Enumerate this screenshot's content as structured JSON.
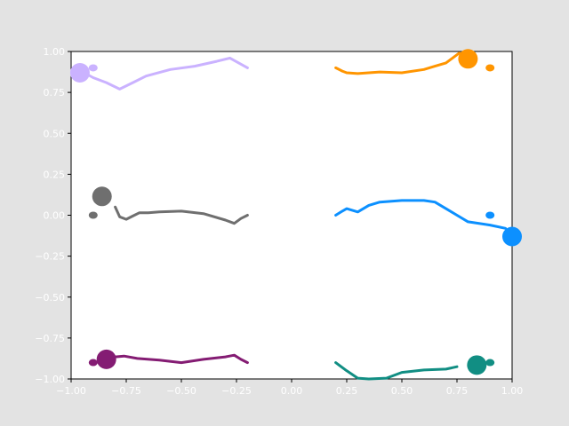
{
  "chart_data": {
    "type": "line",
    "title": "",
    "xlabel": "",
    "ylabel": "",
    "xlim": [
      -1.0,
      1.0
    ],
    "ylim": [
      -1.0,
      1.0
    ],
    "grid": false,
    "x_ticks": [
      -1.0,
      -0.75,
      -0.5,
      -0.25,
      0.0,
      0.25,
      0.5,
      0.75,
      1.0
    ],
    "x_tick_labels": [
      "−1.00",
      "−0.75",
      "−0.50",
      "−0.25",
      "0.00",
      "0.25",
      "0.50",
      "0.75",
      "1.00"
    ],
    "y_ticks": [
      -1.0,
      -0.75,
      -0.5,
      -0.25,
      0.0,
      0.25,
      0.5,
      0.75,
      1.0
    ],
    "y_tick_labels": [
      "−1.00",
      "−0.75",
      "−0.50",
      "−0.25",
      "0.00",
      "0.25",
      "0.50",
      "0.75",
      "1.00"
    ],
    "series": [
      {
        "color": "#cab2ff",
        "x": [
          -0.2,
          -0.24,
          -0.28,
          -0.34,
          -0.44,
          -0.55,
          -0.66,
          -0.72,
          -0.78,
          -0.84,
          -0.9,
          -0.94
        ],
        "y": [
          0.9,
          0.93,
          0.96,
          0.94,
          0.91,
          0.89,
          0.85,
          0.81,
          0.77,
          0.81,
          0.84,
          0.87
        ],
        "head": {
          "x": -0.96,
          "y": 0.87
        },
        "tail": {
          "x": -0.9,
          "y": 0.9
        }
      },
      {
        "color": "#ff9500",
        "x": [
          0.2,
          0.23,
          0.25,
          0.3,
          0.35,
          0.4,
          0.5,
          0.6,
          0.65,
          0.7,
          0.73,
          0.76
        ],
        "y": [
          0.9,
          0.88,
          0.87,
          0.865,
          0.87,
          0.875,
          0.87,
          0.89,
          0.91,
          0.93,
          0.96,
          0.99
        ],
        "head": {
          "x": 0.8,
          "y": 0.955
        },
        "tail": {
          "x": 0.9,
          "y": 0.9
        }
      },
      {
        "color": "#6f6f6f",
        "x": [
          -0.2,
          -0.23,
          -0.26,
          -0.3,
          -0.4,
          -0.5,
          -0.6,
          -0.65,
          -0.69,
          -0.72,
          -0.75,
          -0.78,
          -0.79,
          -0.8
        ],
        "y": [
          0.0,
          -0.02,
          -0.05,
          -0.03,
          0.01,
          0.025,
          0.02,
          0.015,
          0.015,
          -0.005,
          -0.025,
          -0.01,
          0.02,
          0.05
        ],
        "head": {
          "x": -0.86,
          "y": 0.115
        },
        "tail": {
          "x": -0.9,
          "y": 0.0
        }
      },
      {
        "color": "#0c90ff",
        "x": [
          0.2,
          0.23,
          0.25,
          0.3,
          0.35,
          0.4,
          0.5,
          0.6,
          0.65,
          0.7,
          0.75,
          0.8,
          0.9,
          0.97
        ],
        "y": [
          0.0,
          0.025,
          0.04,
          0.02,
          0.06,
          0.08,
          0.09,
          0.09,
          0.08,
          0.04,
          0.0,
          -0.04,
          -0.06,
          -0.08
        ],
        "head": {
          "x": 1.0,
          "y": -0.13
        },
        "tail": {
          "x": 0.9,
          "y": 0.0
        }
      },
      {
        "color": "#841c73",
        "x": [
          -0.2,
          -0.23,
          -0.26,
          -0.3,
          -0.4,
          -0.5,
          -0.6,
          -0.7,
          -0.76,
          -0.8
        ],
        "y": [
          -0.9,
          -0.88,
          -0.855,
          -0.865,
          -0.88,
          -0.9,
          -0.885,
          -0.875,
          -0.86,
          -0.865
        ],
        "head": {
          "x": -0.84,
          "y": -0.88
        },
        "tail": {
          "x": -0.9,
          "y": -0.9
        }
      },
      {
        "color": "#118e83",
        "x": [
          0.2,
          0.25,
          0.3,
          0.35,
          0.43,
          0.5,
          0.6,
          0.7,
          0.75
        ],
        "y": [
          -0.9,
          -0.95,
          -0.995,
          -1.0,
          -0.995,
          -0.96,
          -0.945,
          -0.94,
          -0.925
        ],
        "head": {
          "x": 0.84,
          "y": -0.915
        },
        "tail": {
          "x": 0.9,
          "y": -0.9
        }
      }
    ]
  }
}
